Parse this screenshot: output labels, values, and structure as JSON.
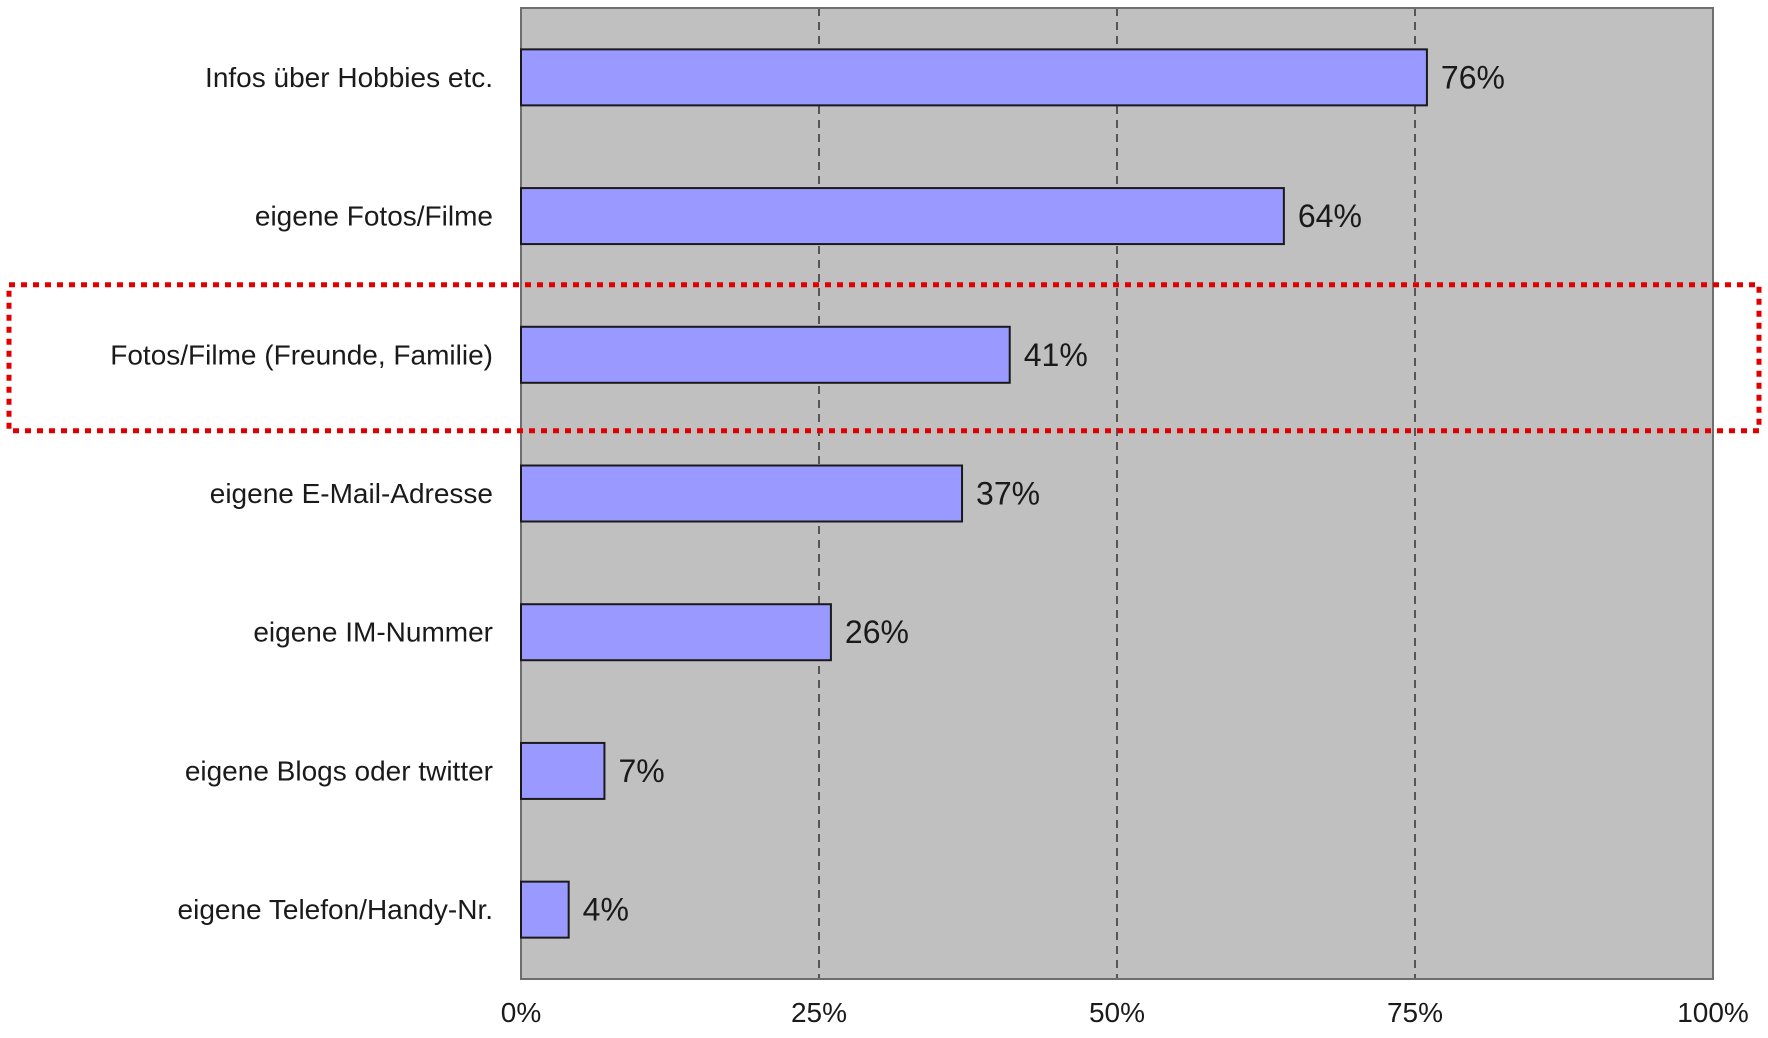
{
  "chart_data": {
    "type": "bar",
    "orientation": "horizontal",
    "categories": [
      "Infos über Hobbies etc.",
      "eigene Fotos/Filme",
      "Fotos/Filme (Freunde, Familie)",
      "eigene E-Mail-Adresse",
      "eigene IM-Nummer",
      "eigene Blogs oder twitter",
      "eigene Telefon/Handy-Nr."
    ],
    "values": [
      76,
      64,
      41,
      37,
      26,
      7,
      4
    ],
    "value_labels": [
      "76%",
      "64%",
      "41%",
      "37%",
      "26%",
      "7%",
      "4%"
    ],
    "xlim": [
      0,
      100
    ],
    "x_ticks": [
      0,
      25,
      50,
      75,
      100
    ],
    "x_tick_labels": [
      "0%",
      "25%",
      "50%",
      "75%",
      "100%"
    ],
    "grid": "vertical dashed",
    "highlighted_category": "Fotos/Filme (Freunde, Familie)",
    "colors": {
      "bar_fill": "#9999ff",
      "bar_stroke": "#1a1a1a",
      "plot_background": "#c0c0c0",
      "highlight_box": "#e00000"
    }
  }
}
